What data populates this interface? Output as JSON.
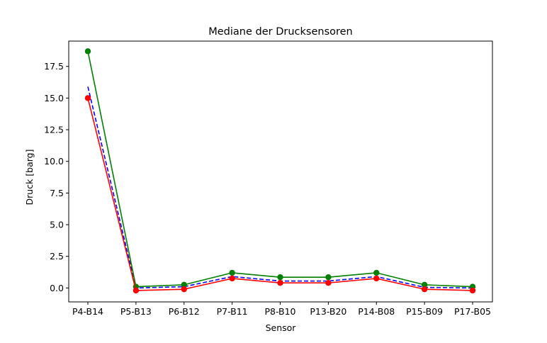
{
  "chart_data": {
    "type": "line",
    "title": "Mediane der Drucksensoren",
    "xlabel": "Sensor",
    "ylabel": "Druck [barg]",
    "categories": [
      "P4-B14",
      "P5-B13",
      "P6-B12",
      "P7-B11",
      "P8-B10",
      "P13-B20",
      "P14-B08",
      "P15-B09",
      "P17-B05"
    ],
    "ylim": [
      -1.1,
      19.5
    ],
    "yticks": [
      0.0,
      2.5,
      5.0,
      7.5,
      10.0,
      12.5,
      15.0,
      17.5
    ],
    "ytick_labels": [
      "0.0",
      "2.5",
      "5.0",
      "7.5",
      "10.0",
      "12.5",
      "15.0",
      "17.5"
    ],
    "grid": false,
    "series": [
      {
        "values": [
          15.9,
          0.0,
          0.1,
          0.9,
          0.55,
          0.55,
          0.9,
          0.05,
          0.0
        ],
        "color": "#0000ff",
        "line_style": "dashed",
        "markers": false
      },
      {
        "values": [
          18.7,
          0.1,
          0.25,
          1.2,
          0.85,
          0.85,
          1.2,
          0.25,
          0.1
        ],
        "color": "#008000",
        "line_style": "solid",
        "markers": true
      },
      {
        "values": [
          15.0,
          -0.2,
          -0.1,
          0.75,
          0.4,
          0.4,
          0.75,
          -0.1,
          -0.2
        ],
        "color": "#ff0000",
        "line_style": "solid",
        "markers": true
      }
    ]
  }
}
